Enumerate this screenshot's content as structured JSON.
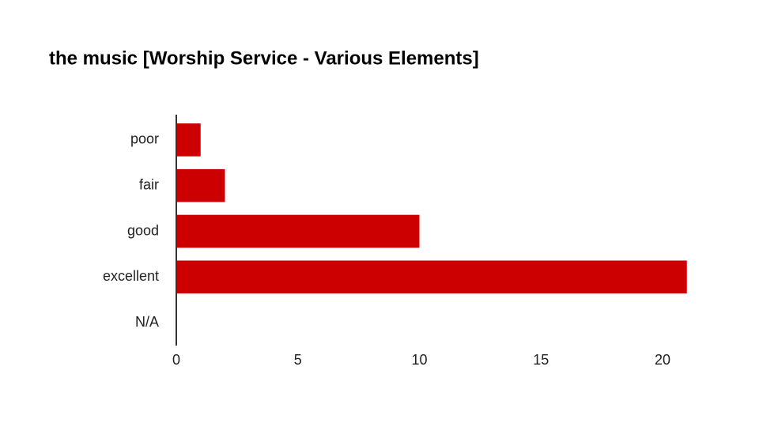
{
  "chart_data": {
    "type": "bar",
    "orientation": "horizontal",
    "title": "the music [Worship Service - Various Elements]",
    "categories": [
      "poor",
      "fair",
      "good",
      "excellent",
      "N/A"
    ],
    "values": [
      1,
      2,
      10,
      21,
      0
    ],
    "color": "#cc0000",
    "xlim": [
      0,
      21
    ],
    "xticks": [
      0,
      5,
      10,
      15,
      20
    ],
    "grid": false
  }
}
